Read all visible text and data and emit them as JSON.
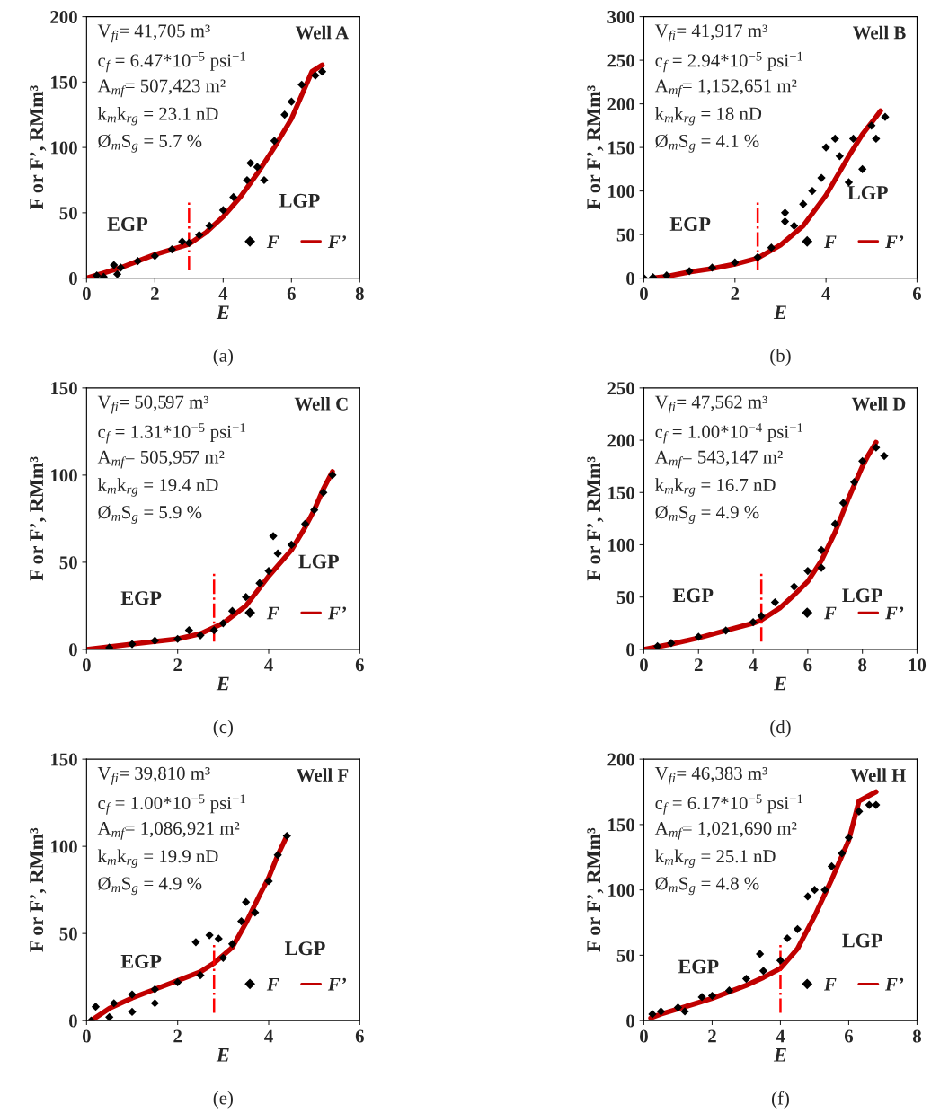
{
  "chart_data": [
    {
      "type": "scatter",
      "xlabel": "E",
      "ylabel": "F or F’, RMm³",
      "xlim": [
        0,
        8
      ],
      "ylim": [
        0,
        200
      ],
      "xticks": [
        0,
        2,
        4,
        6,
        8
      ],
      "yticks": [
        0,
        50,
        100,
        150,
        200
      ],
      "grid": false,
      "legend": "bottom right",
      "annotations": [
        "V$_{fi}$= 41,705 m³",
        "c$_{f}$ = 6.47*10$^{−5}$ psi$^{−1}$",
        "A$_{mf}$= 507,423 m²",
        "k$_{m}$k$_{rg}$ = 23.1 nD",
        "Ø$_{m}$S$_{g}$ = 5.7 %",
        "Well A",
        "(a)",
        "EGP",
        "LGP"
      ],
      "ref_lines": [
        {
          "axis": "x",
          "value": 3,
          "color": "#ff0000",
          "line_style": "dashdot"
        }
      ],
      "series": [
        {
          "name": "F",
          "type": "scatter",
          "marker": "diamond",
          "color": "#000000",
          "x": [
            0.3,
            0.5,
            0.8,
            0.9,
            1,
            1.5,
            2,
            2.5,
            2.8,
            3,
            3.3,
            3.6,
            4,
            4.3,
            4.7,
            4.8,
            5,
            5.2,
            5.5,
            5.8,
            6,
            6.3,
            6.7,
            6.9
          ],
          "values": [
            2,
            1,
            10,
            3,
            8,
            13,
            17,
            22,
            28,
            27,
            33,
            40,
            52,
            62,
            75,
            88,
            85,
            75,
            105,
            125,
            135,
            148,
            155,
            158
          ]
        },
        {
          "name": "F’",
          "type": "line",
          "marker": "none",
          "line_style": "solid",
          "color": "#c00000",
          "x": [
            0,
            0.5,
            1,
            1.5,
            2,
            2.5,
            3,
            3.5,
            4,
            4.5,
            5,
            5.5,
            6,
            6.3,
            6.6,
            6.9
          ],
          "values": [
            0,
            4,
            8,
            13,
            18,
            22,
            26,
            35,
            47,
            62,
            80,
            100,
            122,
            140,
            158,
            163
          ]
        }
      ]
    },
    {
      "type": "scatter",
      "xlabel": "E",
      "ylabel": "F or F’, RMm³",
      "xlim": [
        0,
        6
      ],
      "ylim": [
        0,
        300
      ],
      "xticks": [
        0,
        2,
        4,
        6
      ],
      "yticks": [
        0,
        50,
        100,
        150,
        200,
        250,
        300
      ],
      "grid": false,
      "legend": "bottom right",
      "annotations": [
        "V$_{fi}$= 41,917 m³",
        "c$_{f}$ = 2.94*10$^{−5}$ psi$^{−1}$",
        "A$_{mf}$= 1,152,651 m²",
        "k$_{m}$k$_{rg}$ = 18 nD",
        "Ø$_{m}$S$_{g}$ = 4.1 %",
        "Well B",
        "(b)",
        "EGP",
        "LGP"
      ],
      "ref_lines": [
        {
          "axis": "x",
          "value": 2.5,
          "color": "#ff0000",
          "line_style": "dashdot"
        }
      ],
      "series": [
        {
          "name": "F",
          "type": "scatter",
          "marker": "diamond",
          "color": "#000000",
          "x": [
            0,
            0.2,
            0.5,
            1,
            1.5,
            2,
            2.5,
            2.8,
            3.1,
            3.1,
            3.3,
            3.5,
            3.7,
            3.9,
            4,
            4.2,
            4.3,
            4.5,
            4.6,
            4.8,
            5,
            5.1,
            5.3
          ],
          "values": [
            0,
            1,
            3,
            8,
            12,
            18,
            24,
            35,
            75,
            65,
            60,
            85,
            100,
            115,
            150,
            160,
            140,
            110,
            160,
            125,
            175,
            160,
            185
          ]
        },
        {
          "name": "F’",
          "type": "line",
          "marker": "none",
          "line_style": "solid",
          "color": "#c00000",
          "x": [
            0.2,
            0.5,
            1,
            1.5,
            2,
            2.5,
            3,
            3.5,
            4,
            4.5,
            4.8,
            5.1,
            5.2
          ],
          "values": [
            0,
            2,
            7,
            11,
            16,
            23,
            38,
            60,
            95,
            140,
            165,
            185,
            192
          ]
        }
      ]
    },
    {
      "type": "scatter",
      "xlabel": "E",
      "ylabel": "F or F’, RMm³",
      "xlim": [
        0,
        6
      ],
      "ylim": [
        0,
        150
      ],
      "xticks": [
        0,
        2,
        4,
        6
      ],
      "yticks": [
        0,
        50,
        100,
        150
      ],
      "grid": false,
      "legend": "bottom right",
      "annotations": [
        "V$_{fi}$= 50,597 m³",
        "c$_{f}$ = 1.31*10$^{−5}$ psi$^{−1}$",
        "A$_{mf}$= 505,957 m²",
        "k$_{m}$k$_{rg}$ = 19.4 nD",
        "Ø$_{m}$S$_{g}$ = 5.9 %",
        "Well C",
        "(c)",
        "EGP",
        "LGP"
      ],
      "ref_lines": [
        {
          "axis": "x",
          "value": 2.8,
          "color": "#ff0000",
          "line_style": "dashdot"
        }
      ],
      "series": [
        {
          "name": "F",
          "type": "scatter",
          "marker": "diamond",
          "color": "#000000",
          "x": [
            0.5,
            1,
            1.5,
            2,
            2.25,
            2.5,
            2.8,
            3,
            3.2,
            3.5,
            3.8,
            4,
            4.2,
            4.1,
            4.5,
            4.8,
            5,
            5.2,
            5.4
          ],
          "values": [
            1,
            3,
            5,
            6,
            11,
            8,
            11,
            15,
            22,
            30,
            38,
            45,
            55,
            65,
            60,
            72,
            80,
            90,
            100
          ]
        },
        {
          "name": "F’",
          "type": "line",
          "marker": "none",
          "line_style": "solid",
          "color": "#c00000",
          "x": [
            0,
            1,
            2,
            2.5,
            3,
            3.5,
            4,
            4.5,
            4.8,
            5,
            5.2,
            5.4
          ],
          "values": [
            0,
            3,
            6,
            9,
            15,
            25,
            42,
            57,
            70,
            80,
            92,
            102
          ]
        }
      ]
    },
    {
      "type": "scatter",
      "xlabel": "E",
      "ylabel": "F or F’, RMm³",
      "xlim": [
        0,
        10
      ],
      "ylim": [
        0,
        250
      ],
      "xticks": [
        0,
        2,
        4,
        6,
        8,
        10
      ],
      "yticks": [
        0,
        50,
        100,
        150,
        200,
        250
      ],
      "grid": false,
      "legend": "bottom right",
      "annotations": [
        "V$_{fi}$= 47,562 m³",
        "c$_{f}$ = 1.00*10$^{−4}$ psi$^{−1}$",
        "A$_{mf}$= 543,147 m²",
        "k$_{m}$k$_{rg}$ = 16.7 nD",
        "Ø$_{m}$S$_{g}$ = 4.9 %",
        "Well D",
        "(d)",
        "EGP",
        "LGP"
      ],
      "ref_lines": [
        {
          "axis": "x",
          "value": 4.3,
          "color": "#ff0000",
          "line_style": "dashdot"
        }
      ],
      "series": [
        {
          "name": "F",
          "type": "scatter",
          "marker": "diamond",
          "color": "#000000",
          "x": [
            0.5,
            1,
            2,
            3,
            4,
            4.3,
            4.8,
            5.5,
            6,
            6.5,
            6.5,
            7,
            7.3,
            7.7,
            8,
            8.5,
            8.8
          ],
          "values": [
            3,
            6,
            12,
            18,
            26,
            32,
            45,
            60,
            75,
            78,
            95,
            120,
            140,
            160,
            180,
            193,
            185
          ]
        },
        {
          "name": "F’",
          "type": "line",
          "marker": "none",
          "line_style": "solid",
          "color": "#c00000",
          "x": [
            0,
            1,
            2,
            3,
            4,
            4.3,
            5,
            5.5,
            6,
            6.5,
            7,
            7.5,
            8,
            8.2,
            8.5
          ],
          "values": [
            0,
            5,
            11,
            18,
            25,
            28,
            40,
            52,
            65,
            85,
            112,
            145,
            175,
            185,
            198
          ]
        }
      ]
    },
    {
      "type": "scatter",
      "xlabel": "E",
      "ylabel": "F or F’, RMm³",
      "xlim": [
        0,
        6
      ],
      "ylim": [
        0,
        150
      ],
      "xticks": [
        0,
        2,
        4,
        6
      ],
      "yticks": [
        0,
        50,
        100,
        150
      ],
      "grid": false,
      "legend": "bottom right",
      "annotations": [
        "V$_{fi}$= 39,810 m³",
        "c$_{f}$ = 1.00*10$^{−5}$ psi$^{−1}$",
        "A$_{mf}$= 1,086,921 m²",
        "k$_{m}$k$_{rg}$ = 19.9 nD",
        "Ø$_{m}$S$_{g}$ = 4.9 %",
        "Well F",
        "(e)",
        "EGP",
        "LGP"
      ],
      "ref_lines": [
        {
          "axis": "x",
          "value": 2.8,
          "color": "#ff0000",
          "line_style": "dashdot"
        }
      ],
      "series": [
        {
          "name": "F",
          "type": "scatter",
          "marker": "diamond",
          "color": "#000000",
          "x": [
            0.1,
            0.2,
            0.5,
            0.6,
            1,
            1,
            1.5,
            1.5,
            2,
            2.5,
            2.4,
            2.7,
            2.9,
            3,
            3.2,
            3.4,
            3.5,
            3.7,
            4,
            4.2,
            4.4
          ],
          "values": [
            0,
            8,
            2,
            10,
            15,
            5,
            18,
            10,
            22,
            26,
            45,
            49,
            47,
            36,
            44,
            57,
            68,
            62,
            80,
            95,
            106
          ]
        },
        {
          "name": "F’",
          "type": "line",
          "marker": "none",
          "line_style": "solid",
          "color": "#c00000",
          "x": [
            0.1,
            0.5,
            1,
            1.5,
            2,
            2.5,
            2.8,
            3.2,
            3.5,
            3.8,
            4,
            4.2,
            4.4
          ],
          "values": [
            0,
            7,
            13,
            18,
            23,
            28,
            33,
            42,
            56,
            72,
            82,
            95,
            106
          ]
        }
      ]
    },
    {
      "type": "scatter",
      "xlabel": "E",
      "ylabel": "F or F’, RMm³",
      "xlim": [
        0,
        8
      ],
      "ylim": [
        0,
        200
      ],
      "xticks": [
        0,
        2,
        4,
        6,
        8
      ],
      "yticks": [
        0,
        50,
        100,
        150,
        200
      ],
      "grid": false,
      "legend": "bottom right",
      "annotations": [
        "V$_{fi}$= 46,383 m³",
        "c$_{f}$ = 6.17*10$^{−5}$ psi$^{−1}$",
        "A$_{mf}$= 1,021,690 m²",
        "k$_{m}$k$_{rg}$ = 25.1 nD",
        "Ø$_{m}$S$_{g}$ = 4.8 %",
        "Well H",
        "(f)",
        "EGP",
        "LGP"
      ],
      "ref_lines": [
        {
          "axis": "x",
          "value": 4,
          "color": "#ff0000",
          "line_style": "dashdot"
        }
      ],
      "series": [
        {
          "name": "F",
          "type": "scatter",
          "marker": "diamond",
          "color": "#000000",
          "x": [
            0.25,
            0.5,
            1,
            1.2,
            1.7,
            2,
            2.5,
            3,
            3.4,
            3.5,
            4,
            4.2,
            4.5,
            4.8,
            5,
            5.3,
            5.5,
            5.8,
            6,
            6.3,
            6.6,
            6.8
          ],
          "values": [
            5,
            7,
            10,
            7,
            18,
            19,
            23,
            32,
            51,
            38,
            46,
            63,
            70,
            95,
            100,
            100,
            118,
            128,
            140,
            160,
            165,
            165
          ]
        },
        {
          "name": "F’",
          "type": "line",
          "marker": "none",
          "line_style": "solid",
          "color": "#c00000",
          "x": [
            0.2,
            0.5,
            1,
            1.5,
            2,
            2.5,
            3,
            3.5,
            4,
            4.5,
            5,
            5.5,
            6,
            6.3,
            6.8
          ],
          "values": [
            2,
            5,
            9,
            13,
            17,
            22,
            27,
            33,
            40,
            55,
            80,
            108,
            138,
            168,
            175
          ]
        }
      ]
    }
  ]
}
